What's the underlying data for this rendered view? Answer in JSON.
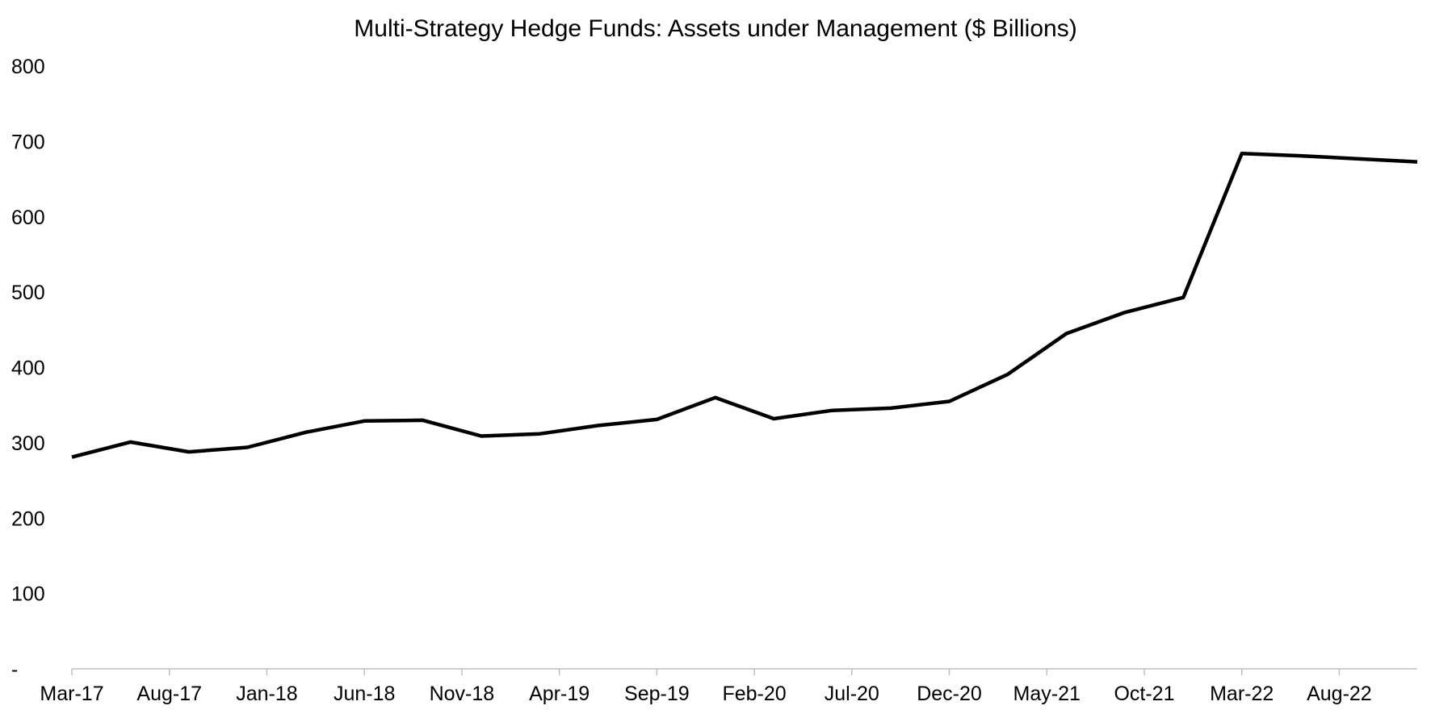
{
  "chart_data": {
    "type": "line",
    "title": "Multi-Strategy Hedge Funds: Assets under Management ($ Billions)",
    "xlabel": "",
    "ylabel": "",
    "ylim": [
      0,
      800
    ],
    "yticks": [
      0,
      100,
      200,
      300,
      400,
      500,
      600,
      700,
      800
    ],
    "ytick_labels": [
      "-",
      "100",
      "200",
      "300",
      "400",
      "500",
      "600",
      "700",
      "800"
    ],
    "xtick_labels": [
      "Mar-17",
      "Aug-17",
      "Jan-18",
      "Jun-18",
      "Nov-18",
      "Apr-19",
      "Sep-19",
      "Feb-20",
      "Jul-20",
      "Dec-20",
      "May-21",
      "Oct-21",
      "Mar-22",
      "Aug-22"
    ],
    "grid": false,
    "legend": "none",
    "line_color": "#000000",
    "series": [
      {
        "x": [
          "Mar-17",
          "Jun-17",
          "Sep-17",
          "Dec-17",
          "Mar-18",
          "Jun-18",
          "Sep-18",
          "Dec-18",
          "Mar-19",
          "Jun-19",
          "Sep-19",
          "Dec-19",
          "Mar-20",
          "Jun-20",
          "Sep-20",
          "Dec-20",
          "Mar-21",
          "Jun-21",
          "Sep-21",
          "Dec-21",
          "Mar-22",
          "Jun-22",
          "Sep-22",
          "Dec-22"
        ],
        "values": [
          281,
          301,
          288,
          294,
          314,
          329,
          330,
          309,
          312,
          323,
          331,
          360,
          332,
          343,
          346,
          355,
          391,
          445,
          473,
          493,
          684,
          681,
          677,
          673
        ]
      }
    ]
  }
}
